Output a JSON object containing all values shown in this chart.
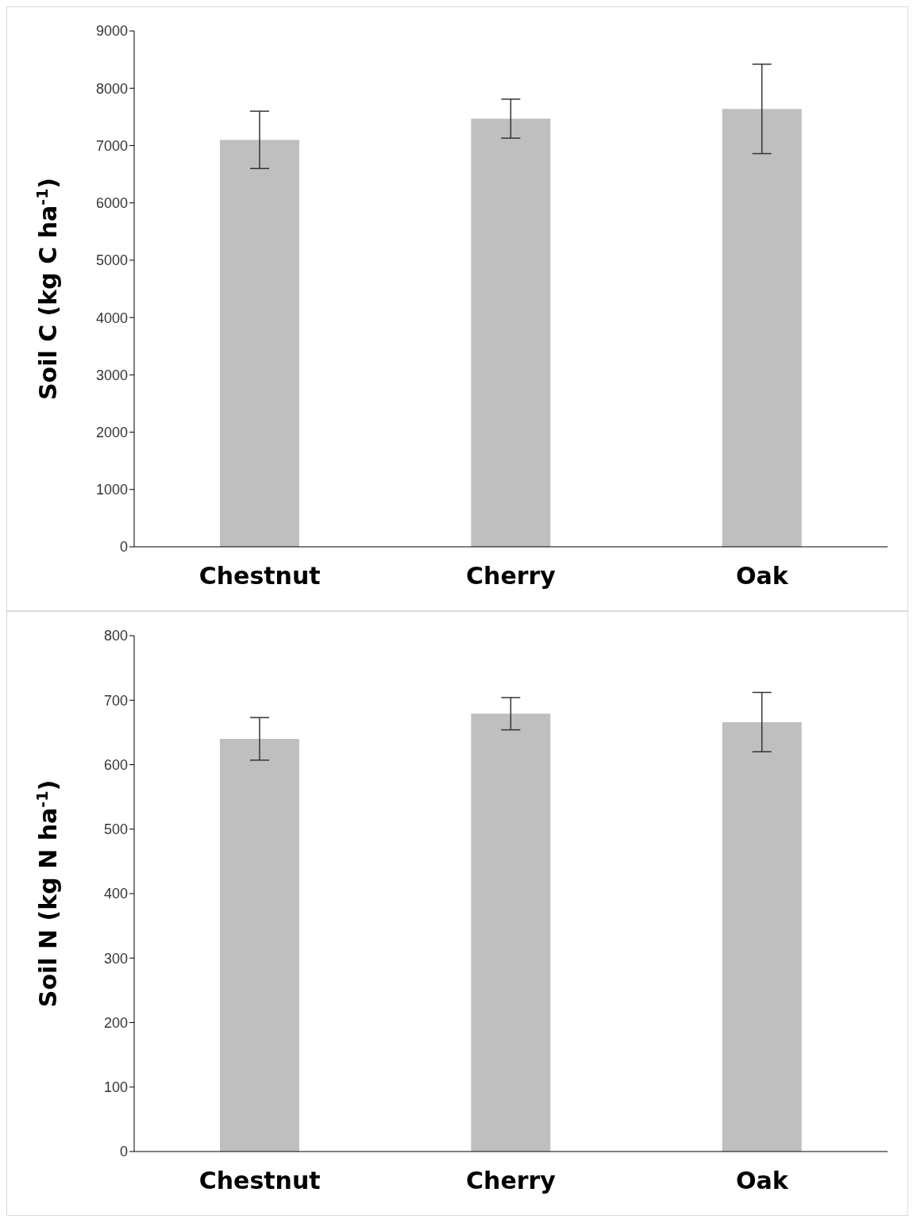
{
  "chart_data": [
    {
      "type": "bar",
      "ylabel": "Soil C (kg C ha$^{-1}$)",
      "categories": [
        "Chestnut",
        "Cherry",
        "Oak"
      ],
      "values": [
        7100,
        7470,
        7640
      ],
      "errors": [
        500,
        340,
        780
      ],
      "color": "#bfbfbf",
      "ylim": [
        0,
        9000
      ],
      "yticks": [
        0,
        1000,
        2000,
        3000,
        4000,
        5000,
        6000,
        7000,
        8000,
        9000
      ],
      "grid": false
    },
    {
      "type": "bar",
      "ylabel": "Soil N (kg N ha$^{-1}$)",
      "categories": [
        "Chestnut",
        "Cherry",
        "Oak"
      ],
      "values": [
        640,
        679,
        666
      ],
      "errors": [
        33,
        25,
        46
      ],
      "color": "#bfbfbf",
      "ylim": [
        0,
        800
      ],
      "yticks": [
        0,
        100,
        200,
        300,
        400,
        500,
        600,
        700,
        800
      ],
      "grid": false
    }
  ]
}
